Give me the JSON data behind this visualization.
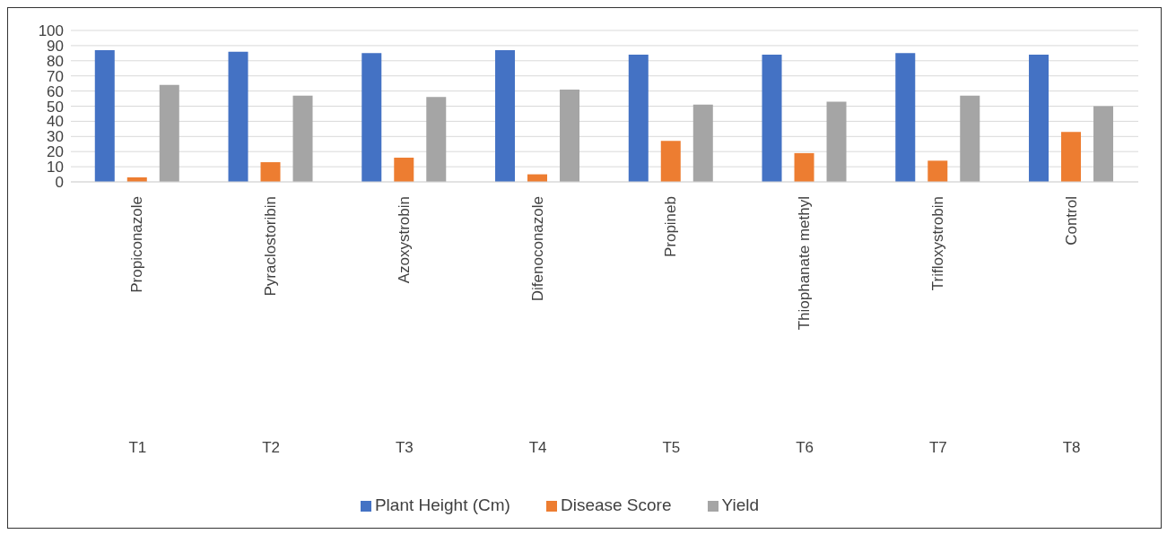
{
  "chart_data": {
    "type": "bar",
    "categories": [
      "Propiconazole",
      "Pyraclostoribin",
      "Azoxystrobin",
      "Difenoconazole",
      "Propineb",
      "Thiophanate methyl",
      "Trifloxystrobin",
      "Control"
    ],
    "series": [
      {
        "name": "Plant Height (Cm)",
        "color": "#4472c4",
        "values": [
          87,
          86,
          85,
          87,
          84,
          84,
          85,
          84
        ]
      },
      {
        "name": "Disease Score",
        "color": "#ed7d31",
        "values": [
          3,
          13,
          16,
          5,
          27,
          19,
          14,
          33
        ]
      },
      {
        "name": "Yield",
        "color": "#a5a5a5",
        "values": [
          64,
          57,
          56,
          61,
          51,
          53,
          57,
          50
        ]
      }
    ],
    "annotations": [
      "T1",
      "T2",
      "T3",
      "T4",
      "T5",
      "T6",
      "T7",
      "T8"
    ],
    "ylim": [
      0,
      100
    ],
    "yticks": [
      0,
      10,
      20,
      30,
      40,
      50,
      60,
      70,
      80,
      90,
      100
    ],
    "grid": "y",
    "legend": "bottom"
  }
}
